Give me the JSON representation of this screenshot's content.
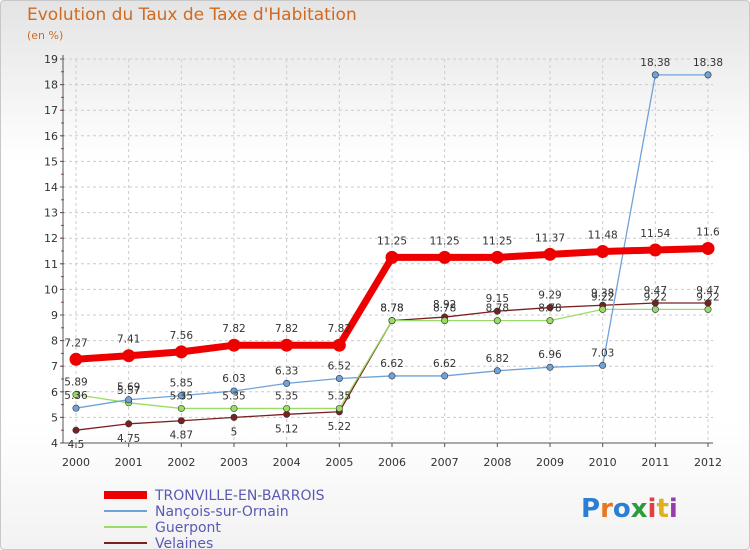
{
  "chart_data": {
    "type": "line",
    "title": "Evolution du Taux de Taxe d'Habitation",
    "subtitle": "(en %)",
    "x": [
      "2000",
      "2001",
      "2002",
      "2003",
      "2004",
      "2005",
      "2006",
      "2007",
      "2008",
      "2009",
      "2010",
      "2011",
      "2012"
    ],
    "ylim": [
      4,
      19
    ],
    "yticks": [
      "4",
      "5",
      "6",
      "7",
      "8",
      "9",
      "10",
      "11",
      "12",
      "13",
      "14",
      "15",
      "16",
      "17",
      "18",
      "19"
    ],
    "series": [
      {
        "name": "TRONVILLE-EN-BARROIS",
        "color": "#ee0000",
        "values": [
          7.27,
          7.41,
          7.56,
          7.82,
          7.82,
          7.82,
          11.25,
          11.25,
          11.25,
          11.37,
          11.48,
          11.54,
          11.6
        ],
        "labels": [
          "7.27",
          "7.41",
          "7.56",
          "7.82",
          "7.82",
          "7.82",
          "11.25",
          "11.25",
          "11.25",
          "11.37",
          "11.48",
          "11.54",
          "11.6"
        ]
      },
      {
        "name": "Nançois-sur-Ornain",
        "color": "#6fa2d8",
        "values": [
          5.36,
          5.69,
          5.85,
          6.03,
          6.33,
          6.52,
          6.62,
          6.62,
          6.82,
          6.96,
          7.03,
          18.38,
          18.38
        ],
        "labels": [
          "5.36",
          "5.69",
          "5.85",
          "6.03",
          "6.33",
          "6.52",
          "6.62",
          "6.62",
          "6.82",
          "6.96",
          "7.03",
          "18.38",
          "18.38"
        ]
      },
      {
        "name": "Guerpont",
        "color": "#99dd66",
        "values": [
          5.89,
          5.57,
          5.35,
          5.35,
          5.35,
          5.35,
          8.78,
          8.78,
          8.78,
          8.78,
          9.22,
          9.22,
          9.22
        ],
        "labels": [
          "5.89",
          "5.57",
          "5.35",
          "5.35",
          "5.35",
          "5.35",
          "8.78",
          "8.78",
          "8.78",
          "8.78",
          "9.22",
          "9.22",
          "9.22"
        ]
      },
      {
        "name": "Velaines",
        "color": "#7b2020",
        "values": [
          4.5,
          4.75,
          4.87,
          5.0,
          5.12,
          5.22,
          8.78,
          8.92,
          9.15,
          9.29,
          9.38,
          9.47,
          9.47
        ],
        "labels": [
          "4.5",
          "4.75",
          "4.87",
          "5",
          "5.12",
          "5.22",
          "8.78",
          "8.92",
          "9.15",
          "9.29",
          "9.38",
          "9.47",
          "9.47"
        ]
      }
    ]
  },
  "logo": {
    "text": "Proxiti",
    "colors": [
      "#2a7fd4",
      "#e87722",
      "#2a7fd4",
      "#2a9d3a",
      "#e04040",
      "#e0b020",
      "#9a3ab0"
    ]
  }
}
